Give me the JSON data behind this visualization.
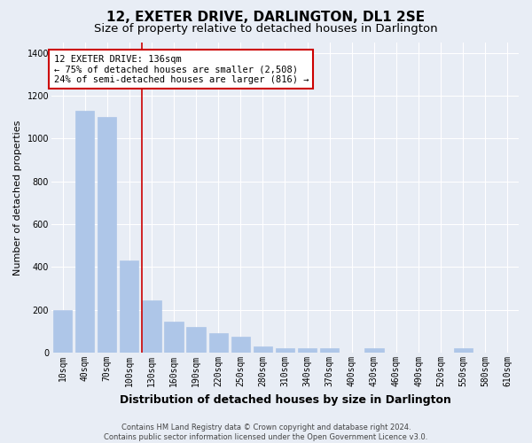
{
  "title": "12, EXETER DRIVE, DARLINGTON, DL1 2SE",
  "subtitle": "Size of property relative to detached houses in Darlington",
  "xlabel": "Distribution of detached houses by size in Darlington",
  "ylabel": "Number of detached properties",
  "categories": [
    "10sqm",
    "40sqm",
    "70sqm",
    "100sqm",
    "130sqm",
    "160sqm",
    "190sqm",
    "220sqm",
    "250sqm",
    "280sqm",
    "310sqm",
    "340sqm",
    "370sqm",
    "400sqm",
    "430sqm",
    "460sqm",
    "490sqm",
    "520sqm",
    "550sqm",
    "580sqm",
    "610sqm"
  ],
  "values": [
    200,
    1130,
    1100,
    430,
    245,
    145,
    120,
    90,
    75,
    30,
    22,
    22,
    22,
    0,
    22,
    0,
    0,
    0,
    22,
    0,
    0
  ],
  "bar_color": "#aec6e8",
  "bar_edgecolor": "#aec6e8",
  "vline_color": "#cc0000",
  "vline_position": 3.55,
  "annotation_text": "12 EXETER DRIVE: 136sqm\n← 75% of detached houses are smaller (2,508)\n24% of semi-detached houses are larger (816) →",
  "annotation_box_facecolor": "#ffffff",
  "annotation_box_edgecolor": "#cc0000",
  "ylim": [
    0,
    1450
  ],
  "yticks": [
    0,
    200,
    400,
    600,
    800,
    1000,
    1200,
    1400
  ],
  "background_color": "#e8edf5",
  "grid_color": "#ffffff",
  "footer_line1": "Contains HM Land Registry data © Crown copyright and database right 2024.",
  "footer_line2": "Contains public sector information licensed under the Open Government Licence v3.0.",
  "title_fontsize": 11,
  "subtitle_fontsize": 9.5,
  "xlabel_fontsize": 9,
  "ylabel_fontsize": 8,
  "annotation_fontsize": 7.5,
  "footer_fontsize": 6,
  "tick_fontsize": 7
}
